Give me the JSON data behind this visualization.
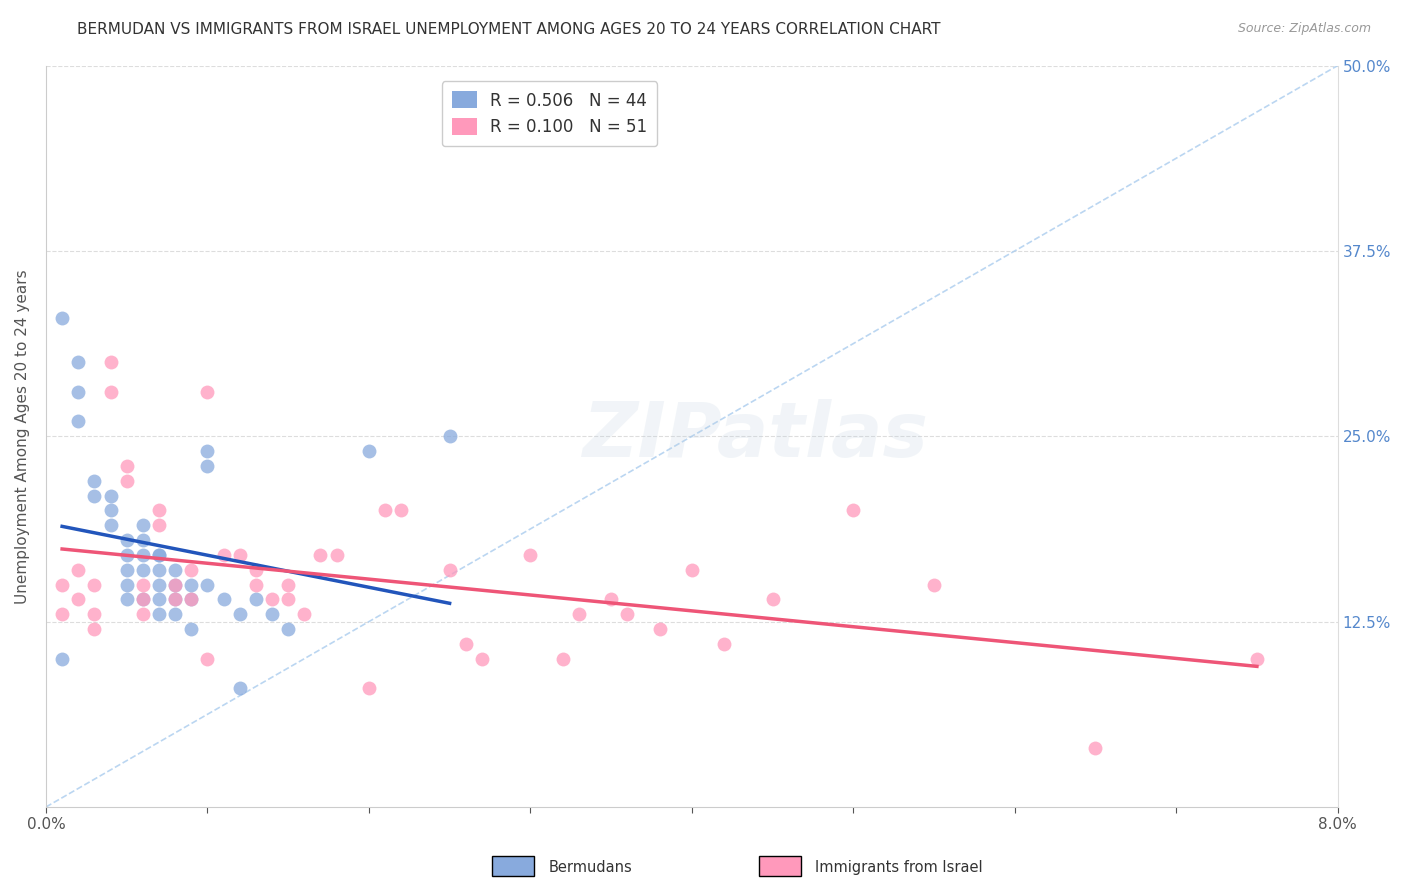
{
  "title": "BERMUDAN VS IMMIGRANTS FROM ISRAEL UNEMPLOYMENT AMONG AGES 20 TO 24 YEARS CORRELATION CHART",
  "source": "Source: ZipAtlas.com",
  "ylabel": "Unemployment Among Ages 20 to 24 years",
  "legend_label_blue": "Bermudans",
  "legend_label_pink": "Immigrants from Israel",
  "legend_R_blue": "R = 0.506",
  "legend_N_blue": "N = 44",
  "legend_R_pink": "R = 0.100",
  "legend_N_pink": "N = 51",
  "x_min": 0.0,
  "x_max": 0.08,
  "y_min": 0.0,
  "y_max": 0.5,
  "y_ticks_right": [
    0.125,
    0.25,
    0.375,
    0.5
  ],
  "y_tick_labels_right": [
    "12.5%",
    "25.0%",
    "37.5%",
    "50.0%"
  ],
  "color_blue": "#88AADD",
  "color_pink": "#FF99BB",
  "color_trend_blue": "#2255BB",
  "color_trend_pink": "#EE5577",
  "color_diagonal": "#AACCEE",
  "background_color": "#FFFFFF",
  "grid_color": "#DDDDDD",
  "blue_x": [
    0.001,
    0.001,
    0.002,
    0.002,
    0.002,
    0.003,
    0.003,
    0.004,
    0.004,
    0.004,
    0.005,
    0.005,
    0.005,
    0.005,
    0.005,
    0.006,
    0.006,
    0.006,
    0.006,
    0.006,
    0.007,
    0.007,
    0.007,
    0.007,
    0.007,
    0.007,
    0.008,
    0.008,
    0.008,
    0.008,
    0.009,
    0.009,
    0.009,
    0.01,
    0.01,
    0.01,
    0.011,
    0.012,
    0.012,
    0.013,
    0.014,
    0.015,
    0.02,
    0.025
  ],
  "blue_y": [
    0.33,
    0.1,
    0.3,
    0.28,
    0.26,
    0.22,
    0.21,
    0.21,
    0.2,
    0.19,
    0.18,
    0.17,
    0.16,
    0.15,
    0.14,
    0.19,
    0.18,
    0.17,
    0.16,
    0.14,
    0.17,
    0.17,
    0.16,
    0.15,
    0.14,
    0.13,
    0.16,
    0.15,
    0.14,
    0.13,
    0.15,
    0.14,
    0.12,
    0.24,
    0.23,
    0.15,
    0.14,
    0.13,
    0.08,
    0.14,
    0.13,
    0.12,
    0.24,
    0.25
  ],
  "pink_x": [
    0.001,
    0.001,
    0.002,
    0.002,
    0.003,
    0.003,
    0.003,
    0.004,
    0.004,
    0.005,
    0.005,
    0.006,
    0.006,
    0.006,
    0.007,
    0.007,
    0.008,
    0.008,
    0.009,
    0.009,
    0.01,
    0.01,
    0.011,
    0.012,
    0.013,
    0.013,
    0.014,
    0.015,
    0.015,
    0.016,
    0.017,
    0.018,
    0.02,
    0.021,
    0.022,
    0.025,
    0.026,
    0.027,
    0.03,
    0.032,
    0.033,
    0.035,
    0.036,
    0.038,
    0.04,
    0.042,
    0.045,
    0.05,
    0.055,
    0.065,
    0.075
  ],
  "pink_y": [
    0.15,
    0.13,
    0.16,
    0.14,
    0.15,
    0.13,
    0.12,
    0.3,
    0.28,
    0.23,
    0.22,
    0.15,
    0.14,
    0.13,
    0.2,
    0.19,
    0.15,
    0.14,
    0.16,
    0.14,
    0.28,
    0.1,
    0.17,
    0.17,
    0.16,
    0.15,
    0.14,
    0.15,
    0.14,
    0.13,
    0.17,
    0.17,
    0.08,
    0.2,
    0.2,
    0.16,
    0.11,
    0.1,
    0.17,
    0.1,
    0.13,
    0.14,
    0.13,
    0.12,
    0.16,
    0.11,
    0.14,
    0.2,
    0.15,
    0.04,
    0.1
  ],
  "title_fontsize": 11,
  "source_fontsize": 9,
  "axis_label_fontsize": 11,
  "tick_fontsize": 11,
  "legend_fontsize": 12,
  "watermark_alpha": 0.2
}
